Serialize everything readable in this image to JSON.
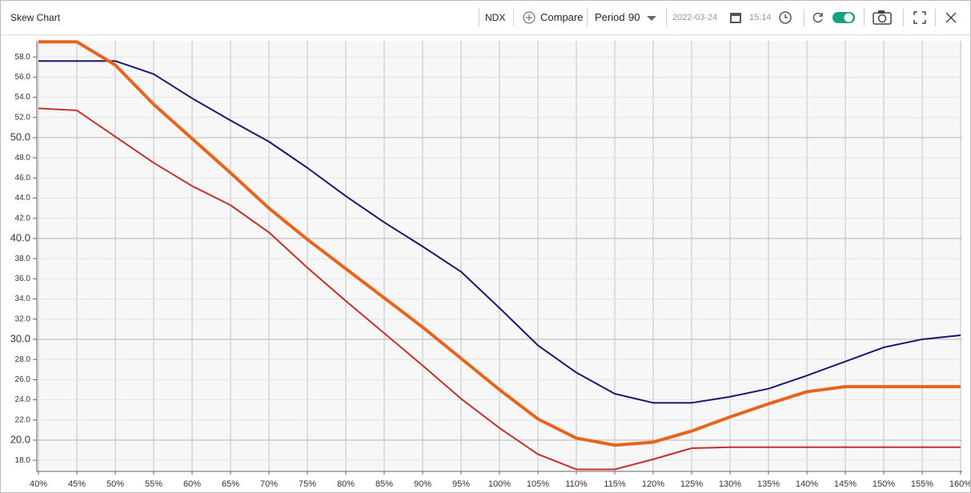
{
  "toolbar": {
    "title": "Skew Chart",
    "symbol": "NDX",
    "compare": "Compare",
    "period_label": "Period",
    "period_value": "90",
    "date": "2022-03-24",
    "time": "15:14"
  },
  "chart_data": {
    "type": "line",
    "categories": [
      "40%",
      "45%",
      "50%",
      "55%",
      "60%",
      "65%",
      "70%",
      "75%",
      "80%",
      "85%",
      "90%",
      "95%",
      "100%",
      "105%",
      "110%",
      "115%",
      "120%",
      "125%",
      "130%",
      "135%",
      "140%",
      "145%",
      "150%",
      "155%",
      "160%"
    ],
    "series": [
      {
        "color": "#1c1670",
        "values": [
          57.6,
          57.6,
          57.6,
          56.3,
          53.9,
          51.7,
          49.6,
          47.0,
          44.2,
          41.6,
          39.2,
          36.7,
          33.1,
          29.4,
          26.7,
          24.6,
          23.7,
          23.7,
          24.3,
          25.1,
          26.4,
          27.8,
          29.2,
          30.0,
          30.4
        ]
      },
      {
        "color": "#e8641c",
        "values": [
          59.5,
          59.5,
          57.2,
          53.3,
          49.9,
          46.5,
          43.0,
          39.9,
          37.0,
          34.1,
          31.2,
          28.1,
          25.0,
          22.1,
          20.2,
          19.5,
          19.8,
          20.9,
          22.3,
          23.6,
          24.8,
          25.3,
          25.3,
          25.3,
          25.3
        ]
      },
      {
        "color": "#c4302b",
        "values": [
          52.9,
          52.7,
          50.1,
          47.5,
          45.2,
          43.3,
          40.6,
          37.1,
          33.8,
          30.6,
          27.4,
          24.1,
          21.2,
          18.6,
          17.1,
          17.1,
          18.1,
          19.2,
          19.3,
          19.3,
          19.3,
          19.3,
          19.3,
          19.3,
          19.3
        ]
      }
    ],
    "ylim": [
      16.9,
      59.6
    ],
    "yticks": [
      {
        "value": 18,
        "label": "18.0"
      },
      {
        "value": 20,
        "label": "20.0"
      },
      {
        "value": 22,
        "label": "22.0"
      },
      {
        "value": 24,
        "label": "24.0"
      },
      {
        "value": 26,
        "label": "26.0"
      },
      {
        "value": 28,
        "label": "28.0"
      },
      {
        "value": 30,
        "label": "30.0"
      },
      {
        "value": 32,
        "label": "32.0"
      },
      {
        "value": 34,
        "label": "34.0"
      },
      {
        "value": 36,
        "label": "36.0"
      },
      {
        "value": 38,
        "label": "38.0"
      },
      {
        "value": 40,
        "label": "40.0"
      },
      {
        "value": 42,
        "label": "42.0"
      },
      {
        "value": 44,
        "label": "44.0"
      },
      {
        "value": 46,
        "label": "46.0"
      },
      {
        "value": 48,
        "label": "48.0"
      },
      {
        "value": 50,
        "label": "50.0"
      },
      {
        "value": 52,
        "label": "52.0"
      },
      {
        "value": 54,
        "label": "54.0"
      },
      {
        "value": 56,
        "label": "56.0"
      },
      {
        "value": 58,
        "label": "58.0"
      }
    ],
    "grid": true
  }
}
